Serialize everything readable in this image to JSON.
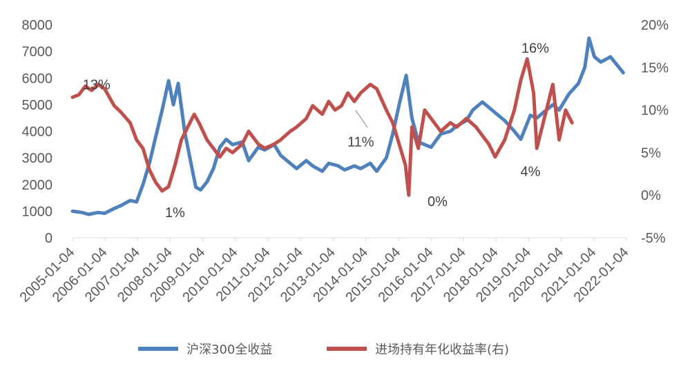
{
  "chart_data": {
    "type": "line",
    "title": "",
    "x_ticks": [
      "2005-01-04",
      "2006-01-04",
      "2007-01-04",
      "2008-01-04",
      "2009-01-04",
      "2010-01-04",
      "2011-01-04",
      "2012-01-04",
      "2013-01-04",
      "2014-01-04",
      "2015-01-04",
      "2016-01-04",
      "2017-01-04",
      "2018-01-04",
      "2019-01-04",
      "2020-01-04",
      "2021-01-04",
      "2022-01-04"
    ],
    "y_left": {
      "min": 0,
      "max": 8000,
      "ticks": [
        "0",
        "1000",
        "2000",
        "3000",
        "4000",
        "5000",
        "6000",
        "7000",
        "8000"
      ]
    },
    "y_right": {
      "min": -5,
      "max": 20,
      "ticks": [
        "-5%",
        "0%",
        "5%",
        "10%",
        "15%",
        "20%"
      ]
    },
    "legend_position": "bottom",
    "series": [
      {
        "name": "沪深300全收益",
        "axis": "left",
        "color": "#4f81bd",
        "x": [
          2005.0,
          2005.3,
          2005.5,
          2005.8,
          2006.0,
          2006.3,
          2006.5,
          2006.8,
          2007.0,
          2007.2,
          2007.4,
          2007.6,
          2007.8,
          2008.0,
          2008.15,
          2008.3,
          2008.5,
          2008.7,
          2008.85,
          2009.0,
          2009.2,
          2009.4,
          2009.6,
          2009.8,
          2010.0,
          2010.3,
          2010.5,
          2010.8,
          2011.0,
          2011.3,
          2011.5,
          2011.8,
          2012.0,
          2012.3,
          2012.5,
          2012.8,
          2013.0,
          2013.3,
          2013.5,
          2013.8,
          2014.0,
          2014.3,
          2014.5,
          2014.8,
          2015.0,
          2015.2,
          2015.42,
          2015.6,
          2015.8,
          2016.0,
          2016.2,
          2016.5,
          2016.8,
          2017.0,
          2017.3,
          2017.5,
          2017.8,
          2018.0,
          2018.2,
          2018.5,
          2018.8,
          2019.0,
          2019.3,
          2019.5,
          2019.8,
          2020.0,
          2020.2,
          2020.5,
          2020.8,
          2021.0,
          2021.13,
          2021.3,
          2021.5,
          2021.8,
          2022.0,
          2022.2
        ],
        "values": [
          1000,
          950,
          880,
          950,
          920,
          1100,
          1200,
          1400,
          1350,
          2000,
          2800,
          3800,
          4800,
          5900,
          5000,
          5800,
          4000,
          2800,
          1900,
          1800,
          2100,
          2600,
          3400,
          3700,
          3500,
          3600,
          2900,
          3400,
          3300,
          3500,
          3100,
          2800,
          2600,
          2900,
          2700,
          2500,
          2800,
          2700,
          2550,
          2700,
          2600,
          2800,
          2500,
          3000,
          3900,
          5000,
          6100,
          4500,
          3600,
          3500,
          3400,
          3900,
          4000,
          4200,
          4400,
          4800,
          5100,
          4900,
          4700,
          4400,
          4000,
          3700,
          4600,
          4500,
          4800,
          5000,
          4800,
          5400,
          5800,
          6400,
          7500,
          6800,
          6600,
          6800,
          6500,
          6200
        ]
      },
      {
        "name": "进场持有年化收益率(右)",
        "axis": "right",
        "color": "#c0504d",
        "x": [
          2005.0,
          2005.2,
          2005.4,
          2005.6,
          2005.8,
          2006.0,
          2006.3,
          2006.5,
          2006.8,
          2007.0,
          2007.2,
          2007.4,
          2007.6,
          2007.8,
          2008.0,
          2008.2,
          2008.4,
          2008.6,
          2008.8,
          2008.95,
          2009.2,
          2009.4,
          2009.6,
          2009.8,
          2010.0,
          2010.3,
          2010.5,
          2010.8,
          2011.0,
          2011.3,
          2011.5,
          2011.8,
          2012.0,
          2012.3,
          2012.5,
          2012.8,
          2013.0,
          2013.2,
          2013.4,
          2013.6,
          2013.8,
          2014.0,
          2014.3,
          2014.5,
          2014.8,
          2015.0,
          2015.2,
          2015.4,
          2015.5,
          2015.6,
          2015.8,
          2016.0,
          2016.2,
          2016.5,
          2016.8,
          2017.0,
          2017.3,
          2017.6,
          2017.8,
          2018.0,
          2018.2,
          2018.5,
          2018.8,
          2019.0,
          2019.2,
          2019.4,
          2019.5,
          2019.6,
          2019.8,
          2020.0,
          2020.2,
          2020.4,
          2020.6
        ],
        "values": [
          11.5,
          11.8,
          12.8,
          12.3,
          13.0,
          12.5,
          10.5,
          9.8,
          8.5,
          6.5,
          5.5,
          3.0,
          1.5,
          0.5,
          1.0,
          3.5,
          6.5,
          8.0,
          9.5,
          8.5,
          6.5,
          5.5,
          4.5,
          5.5,
          5.0,
          6.0,
          7.5,
          6.0,
          5.5,
          6.0,
          6.5,
          7.5,
          8.0,
          9.0,
          10.5,
          9.5,
          11.0,
          10.0,
          10.5,
          12.0,
          11.0,
          12.0,
          13.0,
          12.5,
          10.0,
          8.5,
          6.0,
          3.5,
          0.0,
          8.0,
          5.5,
          10.0,
          9.0,
          7.5,
          8.5,
          8.0,
          9.0,
          8.0,
          7.0,
          6.0,
          4.5,
          6.5,
          10.0,
          13.5,
          16.0,
          12.0,
          5.5,
          7.0,
          10.0,
          13.0,
          6.5,
          10.0,
          8.5
        ]
      }
    ],
    "annotations": [
      {
        "text": "13%",
        "axis": "right",
        "x": 2005.75,
        "y": 13.0
      },
      {
        "text": "1%",
        "axis": "right",
        "x": 2008.2,
        "y": -2.0
      },
      {
        "text": "11%",
        "axis": "right",
        "x": 2014.0,
        "y": 6.3
      },
      {
        "text": "0%",
        "axis": "right",
        "x": 2016.4,
        "y": -0.7
      },
      {
        "text": "4%",
        "axis": "right",
        "x": 2019.3,
        "y": 2.8
      },
      {
        "text": "16%",
        "axis": "right",
        "x": 2019.45,
        "y": 17.3
      }
    ]
  }
}
